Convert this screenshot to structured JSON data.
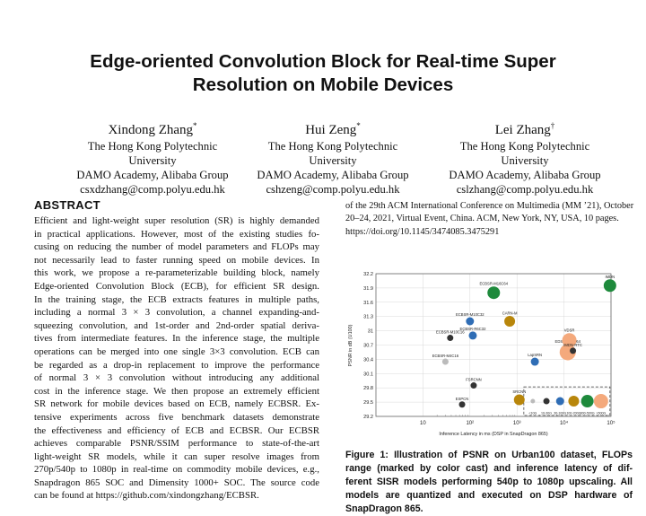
{
  "paper": {
    "title_lines": [
      "Edge-oriented Convolution Block for Real-time Super",
      "Resolution on Mobile Devices"
    ],
    "authors": [
      {
        "name": "Xindong Zhang",
        "mark": "*",
        "affil1": "The Hong Kong Polytechnic",
        "affil2": "University",
        "affil3": "DAMO Academy, Alibaba Group",
        "email": "csxdzhang@comp.polyu.edu.hk"
      },
      {
        "name": "Hui Zeng",
        "mark": "*",
        "affil1": "The Hong Kong Polytechnic",
        "affil2": "University",
        "affil3": "DAMO Academy, Alibaba Group",
        "email": "cshzeng@comp.polyu.edu.hk"
      },
      {
        "name": "Lei Zhang",
        "mark": "†",
        "affil1": "The Hong Kong Polytechnic",
        "affil2": "University",
        "affil3": "DAMO Academy, Alibaba Group",
        "email": "cslzhang@comp.polyu.edu.hk"
      }
    ],
    "abstract_heading": "ABSTRACT",
    "abstract_lines": [
      "Efficient and light-weight super resolution (SR) is highly demanded",
      "in practical applications. However, most of the existing studies fo-",
      "cusing on reducing the number of model parameters and FLOPs may",
      "not necessarily lead to faster running speed on mobile devices. In",
      "this work, we propose a re-parameterizable building block, namely",
      "Edge-oriented Convolution Block (ECB), for efficient SR design.",
      "In the training stage, the ECB extracts features in multiple paths,",
      "including a normal 3 × 3 convolution, a channel expanding-and-",
      "squeezing convolution, and 1st-order and 2nd-order spatial deriva-",
      "tives from intermediate features. In the inference stage, the multiple",
      "operations can be merged into one single 3×3 convolution. ECB can",
      "be regarded as a drop-in replacement to improve the performance",
      "of normal 3 × 3 convolution without introducing any additional",
      "cost in the inference stage. We then propose an extremely efficient",
      "SR network for mobile devices based on ECB, namely ECBSR. Ex-",
      "tensive experiments across five benchmark datasets demonstrate",
      "the effectiveness and efficiency of ECB and ECBSR. Our ECBSR",
      "achieves comparable PSNR/SSIM performance to state-of-the-art",
      "light-weight SR models, while it can super resolve images from",
      "270p/540p to 1080p in real-time on commodity mobile devices, e.g.,",
      "Snapdragon 865 SOC and Dimensity 1000+ SOC. The source code",
      "can be found at https://github.com/xindongzhang/ECBSR."
    ],
    "reference_lines": [
      "of the 29th ACM International Conference on Multimedia (MM ’21), October",
      "20–24, 2021, Virtual Event, China. ACM, New York, NY, USA, 10 pages.",
      "https://doi.org/10.1145/3474085.3475291"
    ],
    "caption_lines": [
      "Figure 1: Illustration of PSNR on Urban100 dataset, FLOPs",
      "range (marked by color cast) and inference latency of dif-",
      "ferent SISR models performing 540p to 1080p upscaling. All",
      "models are quantized and executed on DSP hardware of",
      "SnapDragon 865."
    ]
  },
  "chart_data": {
    "type": "scatter",
    "xlabel": "Inference Latency in ms (DSP in SnapDragon 865)",
    "ylabel": "PSNR in dB (U100)",
    "xscale": "log",
    "xlim": [
      1,
      100000
    ],
    "ylim": [
      29.2,
      32.2
    ],
    "x_tick_labels": [
      "10",
      "10²",
      "10³",
      "10⁴",
      "10⁵"
    ],
    "x_tick_values": [
      10,
      100,
      1000,
      10000,
      100000
    ],
    "y_ticks": [
      29.2,
      29.5,
      29.8,
      30.1,
      30.4,
      30.7,
      31.0,
      31.3,
      31.6,
      31.9,
      32.2
    ],
    "grid": true,
    "points": [
      {
        "label": "EDSR-R16C64",
        "x": 12000,
        "y": 30.55,
        "color": "#f4a97c",
        "size": 9
      },
      {
        "label": "IMDN",
        "x": 95000,
        "y": 31.95,
        "color": "#1e8a3c",
        "size": 7
      },
      {
        "label": "ECBSR-M16C64",
        "x": 320,
        "y": 31.8,
        "color": "#1e8a3c",
        "size": 7
      },
      {
        "label": "CARN-M",
        "x": 700,
        "y": 31.2,
        "color": "#b8860b",
        "size": 6
      },
      {
        "label": "ECBSR-M10C32",
        "x": 100,
        "y": 31.2,
        "color": "#2f6db5",
        "size": 4.5
      },
      {
        "label": "ECBSR-R6C32",
        "x": 115,
        "y": 30.9,
        "color": "#2f6db5",
        "size": 4.5
      },
      {
        "label": "ECBSR-M10C16",
        "x": 38,
        "y": 30.85,
        "color": "#333333",
        "size": 3.5
      },
      {
        "label": "VDSR",
        "x": 13000,
        "y": 30.8,
        "color": "#f4a97c",
        "size": 8
      },
      {
        "label": "IMDN-RTC",
        "x": 15500,
        "y": 30.58,
        "color": "#333333",
        "size": 3.5
      },
      {
        "label": "LapSRN",
        "x": 2400,
        "y": 30.35,
        "color": "#2f6db5",
        "size": 4.5
      },
      {
        "label": "ECBSR-M4C16",
        "x": 30,
        "y": 30.35,
        "color": "#bbbbbb",
        "size": 3.5
      },
      {
        "label": "FSRCNN",
        "x": 120,
        "y": 29.85,
        "color": "#333333",
        "size": 3.5
      },
      {
        "label": "ESPCN",
        "x": 68,
        "y": 29.45,
        "color": "#333333",
        "size": 3.5
      },
      {
        "label": "SRCNN",
        "x": 1120,
        "y": 29.55,
        "color": "#b8860b",
        "size": 6
      }
    ],
    "legend": {
      "placement": "bottom-right",
      "items": [
        {
          "label": "<10G",
          "color": "#bbbbbb",
          "size": 2.5
        },
        {
          "label": "10-30G",
          "color": "#333333",
          "size": 3.5
        },
        {
          "label": "30-100G",
          "color": "#2f6db5",
          "size": 4.5
        },
        {
          "label": "100-200G",
          "color": "#b8860b",
          "size": 6
        },
        {
          "label": "300-500G",
          "color": "#1e8a3c",
          "size": 7
        },
        {
          "label": ">500G",
          "color": "#f4a97c",
          "size": 8
        }
      ]
    }
  }
}
